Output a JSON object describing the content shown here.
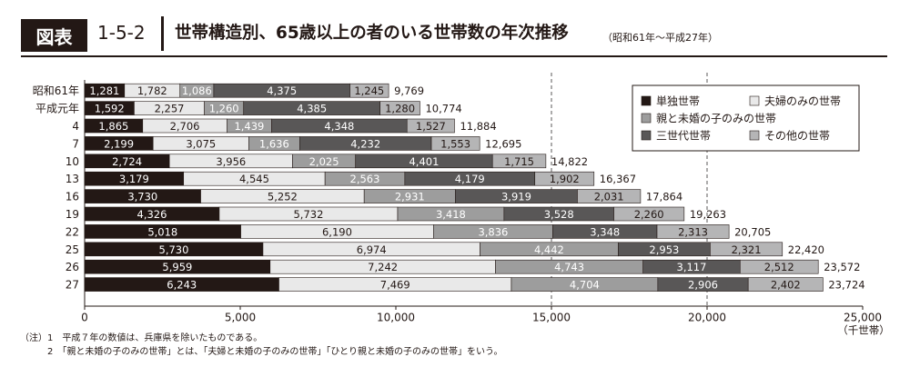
{
  "header": {
    "badge": "図表",
    "number": "1-5-2",
    "title": "世帯構造別、65歳以上の者のいる世帯数の年次推移",
    "source": "（昭和61年〜平成27年）"
  },
  "chart_data": {
    "type": "bar",
    "orientation": "horizontal",
    "stacked": true,
    "categories": [
      "昭和61年",
      "平成元年",
      "4",
      "7",
      "10",
      "13",
      "16",
      "19",
      "22",
      "25",
      "26",
      "27"
    ],
    "series": [
      {
        "name": "単独世帯",
        "color": "#231815",
        "label_color": "#ffffff",
        "values": [
          1281,
          1592,
          1865,
          2199,
          2724,
          3179,
          3730,
          4326,
          5018,
          5730,
          5959,
          6243
        ],
        "labels": [
          "1,281",
          "1,592",
          "1,865",
          "2,199",
          "2,724",
          "3,179",
          "3,730",
          "4,326",
          "5,018",
          "5,730",
          "5,959",
          "6,243"
        ]
      },
      {
        "name": "夫婦のみの世帯",
        "color": "#e9e9e9",
        "label_color": "#231815",
        "values": [
          1782,
          2257,
          2706,
          3075,
          3956,
          4545,
          5252,
          5732,
          6190,
          6974,
          7242,
          7469
        ],
        "labels": [
          "1,782",
          "2,257",
          "2,706",
          "3,075",
          "3,956",
          "4,545",
          "5,252",
          "5,732",
          "6,190",
          "6,974",
          "7,242",
          "7,469"
        ]
      },
      {
        "name": "親と未婚の子のみの世帯",
        "color": "#9d9d9d",
        "label_color": "#ffffff",
        "values": [
          1086,
          1260,
          1439,
          1636,
          2025,
          2563,
          2931,
          3418,
          3836,
          4442,
          4743,
          4704
        ],
        "labels": [
          "1,086",
          "1,260",
          "1,439",
          "1,636",
          "2,025",
          "2,563",
          "2,931",
          "3,418",
          "3,836",
          "4,442",
          "4,743",
          "4,704"
        ]
      },
      {
        "name": "三世代世帯",
        "color": "#595757",
        "label_color": "#ffffff",
        "values": [
          4375,
          4385,
          4348,
          4232,
          4401,
          4179,
          3919,
          3528,
          3348,
          2953,
          3117,
          2906
        ],
        "labels": [
          "4,375",
          "4,385",
          "4,348",
          "4,232",
          "4,401",
          "4,179",
          "3,919",
          "3,528",
          "3,348",
          "2,953",
          "3,117",
          "2,906"
        ]
      },
      {
        "name": "その他の世帯",
        "color": "#b5b5b6",
        "label_color": "#231815",
        "values": [
          1245,
          1280,
          1527,
          1553,
          1715,
          1902,
          2031,
          2260,
          2313,
          2321,
          2512,
          2402
        ],
        "labels": [
          "1,245",
          "1,280",
          "1,527",
          "1,553",
          "1,715",
          "1,902",
          "2,031",
          "2,260",
          "2,313",
          "2,321",
          "2,512",
          "2,402"
        ]
      }
    ],
    "totals": [
      9769,
      10774,
      11884,
      12695,
      14822,
      16367,
      17864,
      19263,
      20705,
      22420,
      23572,
      23724
    ],
    "total_labels": [
      "9,769",
      "10,774",
      "11,884",
      "12,695",
      "14,822",
      "16,367",
      "17,864",
      "19,263",
      "20,705",
      "22,420",
      "23,572",
      "23,724"
    ],
    "xlim": [
      0,
      25000
    ],
    "x_ticks": [
      0,
      5000,
      10000,
      15000,
      20000,
      25000
    ],
    "x_tick_labels": [
      "0",
      "5,000",
      "10,000",
      "15,000",
      "20,000",
      "25,000"
    ],
    "x_unit": "（千世帯）",
    "gridlines": [
      15000,
      20000
    ],
    "legend_position": "top-right"
  },
  "notes": [
    "（注）1　平成７年の数値は、兵庫県を除いたものである。",
    "　　　2　「親と未婚の子のみの世帯」とは、「夫婦と未婚の子のみの世帯」「ひとり親と未婚の子のみの世帯」をいう。"
  ]
}
